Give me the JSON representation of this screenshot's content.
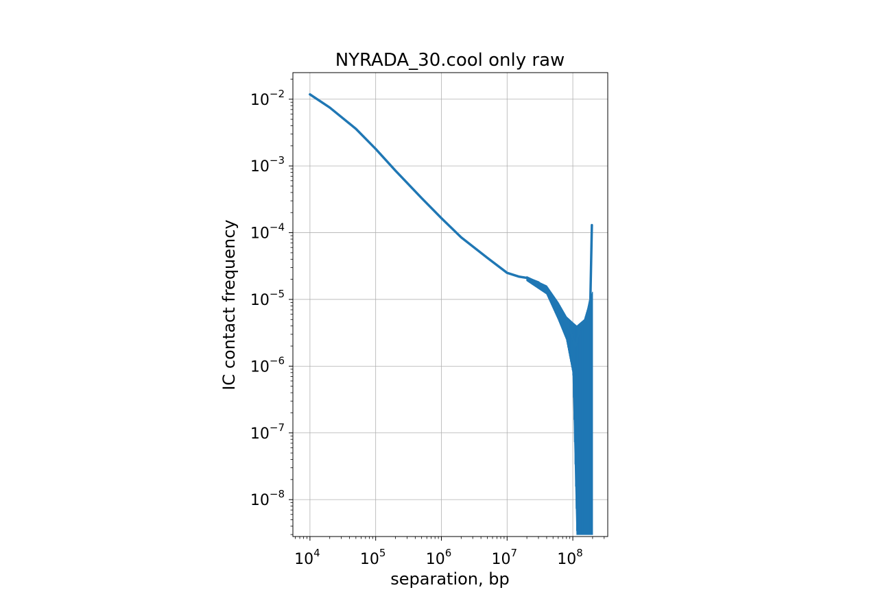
{
  "chart_data": {
    "type": "line",
    "title": "NYRADA_30.cool only raw",
    "xlabel": "separation, bp",
    "ylabel": "IC contact frequency",
    "xscale": "log",
    "yscale": "log",
    "xlim": [
      5500,
      340000000
    ],
    "ylim": [
      2.8e-09,
      0.025
    ],
    "grid": true,
    "x_ticks": [
      {
        "base": "10",
        "exp": "4",
        "value": 10000
      },
      {
        "base": "10",
        "exp": "5",
        "value": 100000
      },
      {
        "base": "10",
        "exp": "6",
        "value": 1000000
      },
      {
        "base": "10",
        "exp": "7",
        "value": 10000000
      },
      {
        "base": "10",
        "exp": "8",
        "value": 100000000
      }
    ],
    "y_ticks": [
      {
        "base": "10",
        "exp": "−2",
        "value": 0.01
      },
      {
        "base": "10",
        "exp": "−3",
        "value": 0.001
      },
      {
        "base": "10",
        "exp": "−4",
        "value": 0.0001
      },
      {
        "base": "10",
        "exp": "−5",
        "value": 1e-05
      },
      {
        "base": "10",
        "exp": "−6",
        "value": 1e-06
      },
      {
        "base": "10",
        "exp": "−7",
        "value": 1e-07
      },
      {
        "base": "10",
        "exp": "−8",
        "value": 1e-08
      }
    ],
    "series": [
      {
        "color": "#1f77b4",
        "points": [
          [
            10000,
            0.0118
          ],
          [
            20000,
            0.0075
          ],
          [
            50000,
            0.0036
          ],
          [
            100000,
            0.0018
          ],
          [
            200000,
            0.00085
          ],
          [
            500000,
            0.00033
          ],
          [
            1000000,
            0.000165
          ],
          [
            2000000,
            8.5e-05
          ],
          [
            5000000,
            4.2e-05
          ],
          [
            10000000,
            2.5e-05
          ],
          [
            15000000,
            2.2e-05
          ],
          [
            20000000,
            2.1e-05
          ],
          [
            30000000,
            1.8e-05
          ],
          [
            50000000,
            1.1e-05
          ],
          [
            70000000,
            5.5e-06
          ],
          [
            90000000,
            3.5e-06
          ],
          [
            110000000,
            2e-06
          ],
          [
            130000000,
            4e-06
          ],
          [
            160000000,
            5e-06
          ],
          [
            185000000,
            1e-05
          ],
          [
            195000000,
            0.00013
          ]
        ],
        "noise_band": [
          [
            20000000,
            1.9e-05,
            2.2e-05
          ],
          [
            40000000,
            1.2e-05,
            1.6e-05
          ],
          [
            60000000,
            5e-06,
            9e-06
          ],
          [
            80000000,
            2.5e-06,
            5.5e-06
          ],
          [
            100000000,
            8e-07,
            4.5e-06
          ],
          [
            115000000,
            3e-09,
            4e-06
          ],
          [
            150000000,
            3e-09,
            5e-06
          ],
          [
            200000000,
            3e-09,
            1.3e-05
          ]
        ]
      }
    ]
  }
}
